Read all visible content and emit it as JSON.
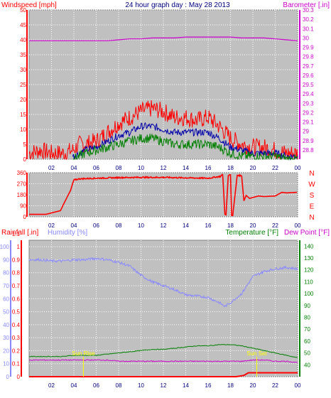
{
  "title": "24 hour graph day : May 28 2013",
  "colors": {
    "background": "#ffffff",
    "plot_background": "#c0c0c0",
    "border": "#808080",
    "grid": "#ffffff",
    "wind_speed": "#ff0000",
    "wind_avg": "#0000aa",
    "wind_green": "#008000",
    "barometer": "#cc00cc",
    "direction": "#ff0000",
    "rainfall": "#ff0000",
    "humidity": "#8888ff",
    "temperature": "#008000",
    "dew_point": "#cc00cc",
    "title": "#000080",
    "sun_marker": "#ffff00"
  },
  "labels": {
    "windspeed": "Windspeed [mph]",
    "barometer": "Barometer [.in]",
    "rainfall": "Rainfall [.in]",
    "humidity": "Humidity [%]",
    "temperature": "Temperature [°F]",
    "dew_point": "Dew Point [°F]",
    "sunrise": "Sun Rise",
    "sunset": "Sun Set",
    "compass": [
      "N",
      "W",
      "S",
      "E",
      "N"
    ]
  },
  "chart_data": [
    {
      "type": "line",
      "name": "wind_and_barometer",
      "x_ticks": [
        "02",
        "04",
        "06",
        "08",
        "10",
        "12",
        "14",
        "16",
        "18",
        "20",
        "22",
        "00"
      ],
      "xlim": [
        0,
        24
      ],
      "left_axis": {
        "label": "Windspeed [mph]",
        "ylim": [
          0,
          50
        ],
        "ticks": [
          0,
          5,
          10,
          15,
          20,
          25,
          30,
          35,
          40,
          45,
          50
        ]
      },
      "right_axis": {
        "label": "Barometer [.in]",
        "ylim": [
          28.7,
          30.3
        ],
        "ticks": [
          "28.8",
          "28.9",
          "29",
          "29.1",
          "29.2",
          "29.3",
          "29.4",
          "29.5",
          "29.6",
          "29.7",
          "29.8",
          "29.9",
          "30",
          "30.1",
          "30.2",
          "30.3"
        ]
      },
      "series": [
        {
          "name": "Barometer [.in]",
          "axis": "right",
          "x": [
            0,
            1,
            2,
            3,
            4,
            5,
            6,
            7,
            8,
            9,
            10,
            11,
            12,
            13,
            14,
            15,
            16,
            17,
            18,
            19,
            20,
            21,
            22,
            23,
            24
          ],
          "values": [
            29.97,
            29.97,
            29.97,
            29.97,
            29.97,
            29.97,
            29.97,
            29.97,
            29.98,
            29.99,
            29.99,
            30.0,
            30.0,
            30.0,
            30.01,
            30.01,
            30.01,
            30.01,
            30.01,
            30.0,
            30.0,
            30.0,
            29.99,
            29.98,
            29.97
          ]
        },
        {
          "axis": "left",
          "x": [
            0,
            1,
            2,
            3,
            3.9,
            4.5,
            5,
            6,
            7,
            8,
            9,
            10,
            11,
            12,
            13,
            14,
            15,
            16,
            17,
            18,
            19,
            20,
            21,
            22,
            23,
            24
          ],
          "values": [
            2,
            3,
            2,
            2,
            3,
            5,
            5,
            6,
            9,
            12,
            14,
            16,
            17,
            16,
            14,
            14,
            13,
            14,
            11,
            7,
            5,
            4,
            4,
            3,
            2,
            2
          ]
        },
        {
          "axis": "left",
          "x": [
            3.9,
            4.5,
            5,
            6,
            7,
            8,
            9,
            10,
            11,
            12,
            13,
            14,
            15,
            16,
            17,
            18,
            19,
            20,
            21,
            22,
            23,
            24
          ],
          "values": [
            1,
            2,
            3,
            4,
            6,
            8,
            9,
            11,
            11,
            10,
            9,
            9,
            9,
            9,
            7,
            4,
            3,
            2,
            2,
            2,
            1,
            1
          ]
        },
        {
          "axis": "left",
          "x": [
            3.9,
            4.5,
            5,
            6,
            7,
            8,
            9,
            10,
            11,
            12,
            13,
            14,
            15,
            16,
            17,
            18,
            19,
            20,
            21,
            22,
            23,
            24
          ],
          "values": [
            0,
            1,
            2,
            3,
            4,
            5,
            6,
            7,
            7,
            6,
            5,
            5,
            5,
            5,
            4,
            2,
            1,
            1,
            1,
            1,
            0,
            0
          ]
        }
      ]
    },
    {
      "type": "line",
      "name": "wind_direction",
      "x_ticks": [
        "02",
        "04",
        "06",
        "08",
        "10",
        "12",
        "14",
        "16",
        "18",
        "20",
        "22",
        "00"
      ],
      "xlim": [
        0,
        24
      ],
      "left_axis": {
        "ylim": [
          0,
          360
        ],
        "ticks": [
          0,
          90,
          180,
          270,
          360
        ]
      },
      "right_axis": {
        "ticks": [
          "N",
          "W",
          "S",
          "E",
          "N"
        ]
      },
      "series": [
        {
          "axis": "left",
          "x": [
            0,
            1.5,
            2.8,
            3.2,
            3.7,
            4.0,
            4.5,
            6,
            8,
            10,
            12,
            14,
            16,
            17.1,
            17.3,
            17.5,
            17.6,
            17.8,
            18.0,
            18.1,
            18.2,
            18.6,
            19.0,
            19.2,
            19.4,
            19.7,
            20.5,
            21,
            22,
            22.6,
            23,
            24
          ],
          "values": [
            20,
            20,
            50,
            125,
            215,
            300,
            310,
            315,
            320,
            322,
            322,
            318,
            315,
            330,
            345,
            20,
            15,
            340,
            342,
            10,
            10,
            340,
            335,
            130,
            175,
            150,
            170,
            165,
            170,
            200,
            195,
            200
          ]
        }
      ]
    },
    {
      "type": "line",
      "name": "rain_humidity_temperature",
      "x_ticks": [
        "02",
        "04",
        "06",
        "08",
        "10",
        "12",
        "14",
        "16",
        "18",
        "20",
        "22",
        "00"
      ],
      "xlim": [
        0,
        24
      ],
      "left_axis": {
        "label": "Rainfall [.in]",
        "ylim": [
          0,
          1.05
        ],
        "ticks": [
          "0",
          "0.1",
          "0.2",
          "0.3",
          "0.4",
          "0.5",
          "0.6",
          "0.7",
          "0.8",
          "0.9",
          "1",
          "1.1"
        ]
      },
      "left_axis_2": {
        "label": "Humidity [%]",
        "ylim": [
          0,
          105
        ],
        "ticks": [
          0,
          10,
          20,
          30,
          40,
          50,
          60,
          70,
          80,
          90,
          100
        ]
      },
      "right_axis": {
        "label": "Temperature [°F] / Dew Point [°F]",
        "ylim": [
          30,
          145
        ],
        "ticks": [
          40,
          50,
          60,
          70,
          80,
          90,
          100,
          110,
          120,
          130,
          140
        ]
      },
      "series": [
        {
          "name": "Humidity [%]",
          "axis": "left2",
          "x": [
            0,
            1,
            2,
            3,
            4,
            5,
            6,
            7,
            8,
            9,
            10,
            11,
            12,
            13,
            14,
            15,
            16,
            17,
            17.5,
            18,
            19,
            20,
            21,
            22,
            23,
            24
          ],
          "values": [
            90,
            90,
            89,
            89,
            90,
            90,
            91,
            90,
            88,
            85,
            78,
            73,
            70,
            67,
            63,
            62,
            61,
            57,
            54,
            57,
            64,
            77,
            81,
            83,
            84,
            83
          ]
        },
        {
          "name": "Temperature [°F]",
          "axis": "right",
          "x": [
            0,
            1,
            2,
            3,
            4,
            5,
            6,
            7,
            8,
            9,
            10,
            11,
            12,
            13,
            14,
            15,
            16,
            17,
            18,
            19,
            20,
            21,
            22,
            23,
            24
          ],
          "values": [
            47,
            47,
            47,
            47,
            48,
            48,
            48,
            49,
            50,
            51,
            52,
            53,
            53,
            54,
            55,
            56,
            56,
            57,
            57,
            56,
            54,
            52,
            50,
            48,
            46
          ]
        },
        {
          "name": "Dew Point [°F]",
          "axis": "right",
          "x": [
            0,
            1,
            2,
            3,
            4,
            5,
            6,
            7,
            8,
            9,
            10,
            11,
            12,
            13,
            14,
            15,
            16,
            17,
            18,
            19,
            20,
            21,
            22,
            23,
            24
          ],
          "values": [
            44,
            44,
            44,
            44,
            44,
            44,
            44,
            44,
            43,
            43,
            43,
            43,
            43,
            43,
            43,
            43,
            43,
            43,
            43,
            43,
            44,
            44,
            43,
            43,
            42
          ]
        },
        {
          "name": "Rainfall [.in]",
          "axis": "left",
          "x": [
            0,
            18.5,
            19.2,
            19.6,
            23.8,
            24
          ],
          "values": [
            0,
            0,
            0.01,
            0.03,
            0.03,
            0.03
          ]
        }
      ],
      "sun_times": {
        "sunrise": 4.85,
        "sunset": 20.35
      }
    }
  ]
}
